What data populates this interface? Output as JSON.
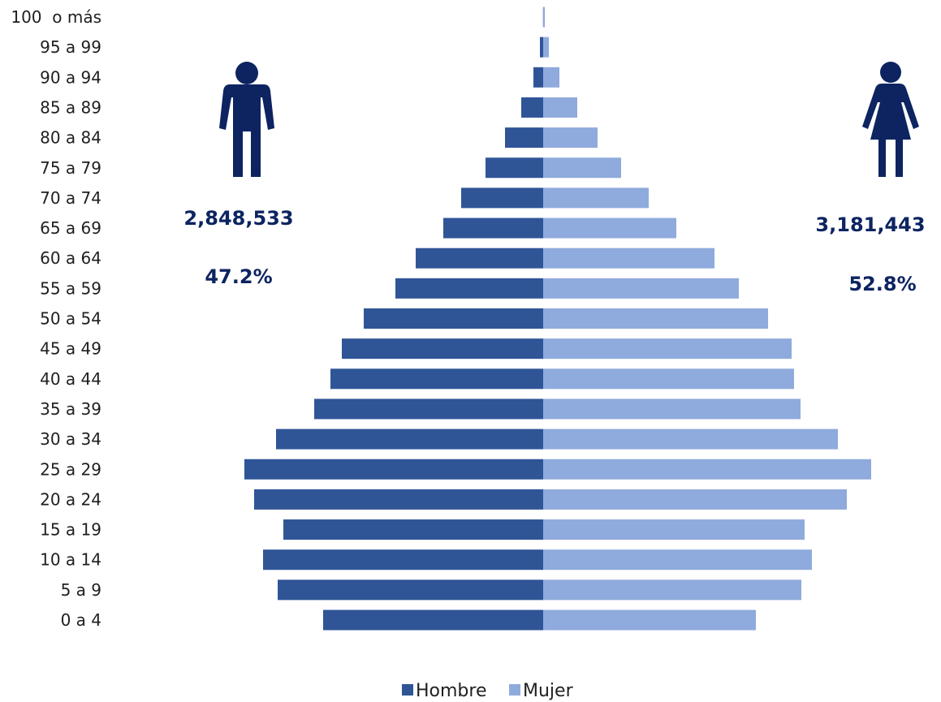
{
  "chart_data": {
    "type": "bar",
    "orientation": "horizontal-population-pyramid",
    "categories": [
      "100  o más",
      "95 a 99",
      "90 a 94",
      "85 a 89",
      "80 a 84",
      "75 a 79",
      "70 a 74",
      "65 a 69",
      "60 a 64",
      "55 a 59",
      "50 a 54",
      "45 a 49",
      "40 a 44",
      "35 a 39",
      "30 a 34",
      "25 a 29",
      "20 a 24",
      "15 a 19",
      "10 a 14",
      "5 a 9",
      "0 a 4"
    ],
    "series": [
      {
        "name": "Hombre",
        "color": "#2f5597",
        "values": [
          0.2,
          4,
          12,
          27,
          47,
          71,
          101,
          123,
          157,
          182,
          221,
          248,
          262,
          282,
          329,
          368,
          356,
          320,
          345,
          327,
          271
        ]
      },
      {
        "name": "Mujer",
        "color": "#8faadc",
        "values": [
          2,
          7,
          20,
          42,
          67,
          96,
          130,
          164,
          211,
          241,
          277,
          306,
          309,
          317,
          363,
          404,
          374,
          322,
          331,
          318,
          262
        ]
      }
    ],
    "legend": {
      "placement": "bottom",
      "entries": [
        "Hombre",
        "Mujer"
      ]
    },
    "grid": false,
    "annotations": {
      "male_total": "2,848,533",
      "male_percent": "47.2%",
      "female_total": "3,181,443",
      "female_percent": "52.8%"
    },
    "icons": {
      "male": "man-icon",
      "female": "woman-icon"
    },
    "icon_color": "#0d2461"
  }
}
